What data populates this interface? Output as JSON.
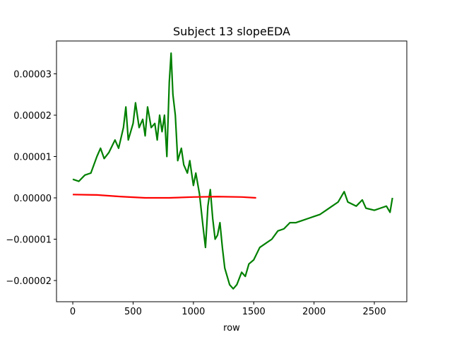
{
  "chart_data": {
    "type": "line",
    "title": "Subject 13 slopeEDA",
    "x_label": "row",
    "xlim": [
      -135,
      2769
    ],
    "ylim": [
      -2.513e-05,
      3.795e-05
    ],
    "xticks": [
      0,
      500,
      1000,
      1500,
      2000,
      2500
    ],
    "yticks": [
      {
        "value": -2e-05,
        "label": "−0.00002"
      },
      {
        "value": -1e-05,
        "label": "−0.00001"
      },
      {
        "value": 0,
        "label": "0.00000"
      },
      {
        "value": 1e-05,
        "label": "0.00001"
      },
      {
        "value": 2e-05,
        "label": "0.00002"
      },
      {
        "value": 3e-05,
        "label": "0.00003"
      }
    ],
    "series": [
      {
        "color": "#008000",
        "x": [
          0,
          50,
          100,
          150,
          200,
          230,
          260,
          300,
          350,
          380,
          420,
          440,
          460,
          500,
          520,
          550,
          580,
          600,
          620,
          650,
          680,
          700,
          720,
          740,
          760,
          780,
          800,
          815,
          830,
          850,
          870,
          900,
          920,
          950,
          970,
          1000,
          1020,
          1050,
          1080,
          1100,
          1120,
          1140,
          1160,
          1180,
          1200,
          1220,
          1240,
          1260,
          1300,
          1330,
          1360,
          1400,
          1430,
          1460,
          1500,
          1550,
          1600,
          1650,
          1700,
          1750,
          1800,
          1850,
          1900,
          1950,
          2000,
          2050,
          2100,
          2150,
          2200,
          2250,
          2280,
          2350,
          2400,
          2430,
          2500,
          2550,
          2600,
          2630,
          2650
        ],
        "values": [
          4.5e-06,
          4e-06,
          5.5e-06,
          6e-06,
          1e-05,
          1.2e-05,
          9.5e-06,
          1.1e-05,
          1.4e-05,
          1.2e-05,
          1.7e-05,
          2.2e-05,
          1.4e-05,
          1.8e-05,
          2.3e-05,
          1.7e-05,
          1.9e-05,
          1.5e-05,
          2.2e-05,
          1.7e-05,
          1.8e-05,
          1.4e-05,
          2e-05,
          1.6e-05,
          2e-05,
          1e-05,
          2.8e-05,
          3.5e-05,
          2.5e-05,
          2e-05,
          9e-06,
          1.2e-05,
          8e-06,
          6e-06,
          9e-06,
          3e-06,
          6e-06,
          1e-06,
          -7e-06,
          -1.2e-05,
          -2e-06,
          2e-06,
          -5e-06,
          -1e-05,
          -9e-06,
          -6e-06,
          -1.2e-05,
          -1.7e-05,
          -2.1e-05,
          -2.2e-05,
          -2.1e-05,
          -1.8e-05,
          -1.9e-05,
          -1.6e-05,
          -1.5e-05,
          -1.2e-05,
          -1.1e-05,
          -1e-05,
          -8e-06,
          -7.5e-06,
          -6e-06,
          -6e-06,
          -5.5e-06,
          -5e-06,
          -4.5e-06,
          -4e-06,
          -3e-06,
          -2e-06,
          -1e-06,
          1.5e-06,
          -1e-06,
          -2e-06,
          -5e-07,
          -2.5e-06,
          -3e-06,
          -2.5e-06,
          -2e-06,
          -3.5e-06,
          0
        ]
      },
      {
        "color": "#ff0000",
        "x": [
          0,
          200,
          400,
          600,
          800,
          1000,
          1200,
          1400,
          1520
        ],
        "values": [
          8e-07,
          7e-07,
          3e-07,
          0,
          0,
          2e-07,
          3e-07,
          2e-07,
          0
        ]
      }
    ]
  }
}
